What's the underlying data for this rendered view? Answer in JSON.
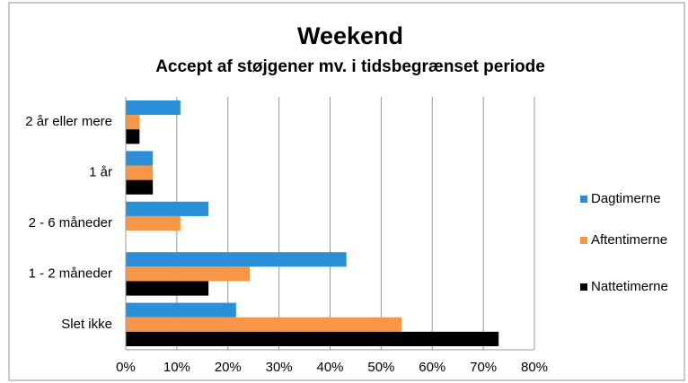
{
  "chart_data": {
    "type": "hbar",
    "title": "Weekend",
    "subtitle": "Accept af støjgener mv. i tidsbegrænset periode",
    "categories": [
      "2 år eller mere",
      "1 år",
      "2 - 6 måneder",
      "1 - 2 måneder",
      "Slet ikke"
    ],
    "series": [
      {
        "name": "Dagtimerne",
        "color": "#2a8fd6",
        "values": [
          10.7,
          5.3,
          16.2,
          43.2,
          21.6
        ]
      },
      {
        "name": "Aftentimerne",
        "color": "#f79646",
        "values": [
          2.7,
          5.3,
          10.7,
          24.3,
          54
        ]
      },
      {
        "name": "Nattetimerne",
        "color": "#000000",
        "values": [
          2.7,
          5.3,
          0,
          16.2,
          73
        ]
      }
    ],
    "xlim": [
      0,
      80
    ],
    "xticks": [
      {
        "value": 0,
        "label": "0%"
      },
      {
        "value": 10,
        "label": "10%"
      },
      {
        "value": 20,
        "label": "20%"
      },
      {
        "value": 30,
        "label": "30%"
      },
      {
        "value": 40,
        "label": "40%"
      },
      {
        "value": 50,
        "label": "50%"
      },
      {
        "value": 60,
        "label": "60%"
      },
      {
        "value": 70,
        "label": "70%"
      },
      {
        "value": 80,
        "label": "80%"
      }
    ],
    "grid": true,
    "legend": "right"
  }
}
